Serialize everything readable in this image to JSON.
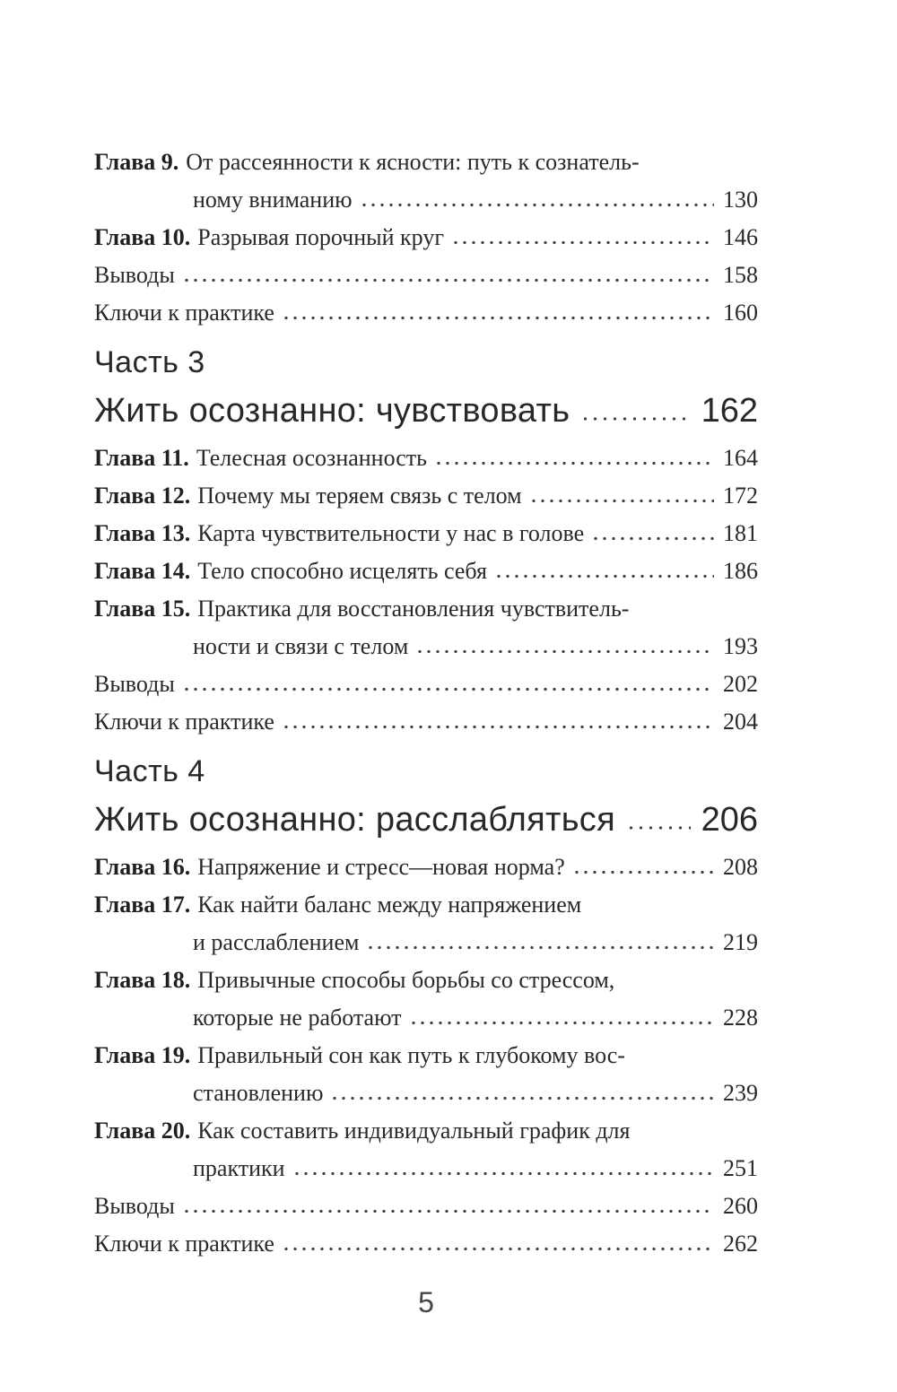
{
  "toc": [
    {
      "kind": "chapter2",
      "label": "Глава 9.",
      "line1": "От рассеянности к ясности: путь к сознатель-",
      "line2": "ному вниманию",
      "page": "130"
    },
    {
      "kind": "chapter1",
      "label": "Глава 10.",
      "text": "Разрывая порочный круг",
      "page": "146"
    },
    {
      "kind": "plain",
      "text": "Выводы",
      "page": "158"
    },
    {
      "kind": "plain",
      "text": "Ключи к практике",
      "page": "160"
    },
    {
      "kind": "part",
      "label": "Часть 3",
      "title": "Жить осознанно: чувствовать",
      "page": "162"
    },
    {
      "kind": "chapter1",
      "label": "Глава 11.",
      "text": "Телесная осознанность",
      "page": "164"
    },
    {
      "kind": "chapter1",
      "label": "Глава 12.",
      "text": "Почему мы теряем связь с телом",
      "page": "172"
    },
    {
      "kind": "chapter1",
      "label": "Глава 13.",
      "text": "Карта чувствительности у нас в голове",
      "page": "181"
    },
    {
      "kind": "chapter1",
      "label": "Глава 14.",
      "text": "Тело способно исцелять себя",
      "page": "186"
    },
    {
      "kind": "chapter2",
      "label": "Глава 15.",
      "line1": "Практика для восстановления чувствитель-",
      "line2": "ности и связи с телом",
      "page": "193"
    },
    {
      "kind": "plain",
      "text": "Выводы",
      "page": "202"
    },
    {
      "kind": "plain",
      "text": "Ключи к практике",
      "page": "204"
    },
    {
      "kind": "part",
      "label": "Часть 4",
      "title": "Жить осознанно: расслабляться",
      "page": "206"
    },
    {
      "kind": "chapter1",
      "label": "Глава 16.",
      "text": "Напряжение и стресс—новая норма?",
      "page": "208"
    },
    {
      "kind": "chapter2",
      "label": "Глава 17.",
      "line1": "Как найти баланс между напряжением",
      "line2": "и расслаблением",
      "page": "219"
    },
    {
      "kind": "chapter2",
      "label": "Глава 18.",
      "line1": "Привычные способы борьбы со стрессом,",
      "line2": "которые не работают",
      "page": "228"
    },
    {
      "kind": "chapter2",
      "label": "Глава 19.",
      "line1": "Правильный сон как путь к глубокому вос-",
      "line2": "становлению",
      "page": "239"
    },
    {
      "kind": "chapter2",
      "label": "Глава 20.",
      "line1": "Как составить индивидуальный график для",
      "line2": "практики",
      "page": "251"
    },
    {
      "kind": "plain",
      "text": "Выводы",
      "page": "260"
    },
    {
      "kind": "plain",
      "text": "Ключи к практике",
      "page": "262"
    }
  ],
  "footer": {
    "page_number": "5"
  }
}
